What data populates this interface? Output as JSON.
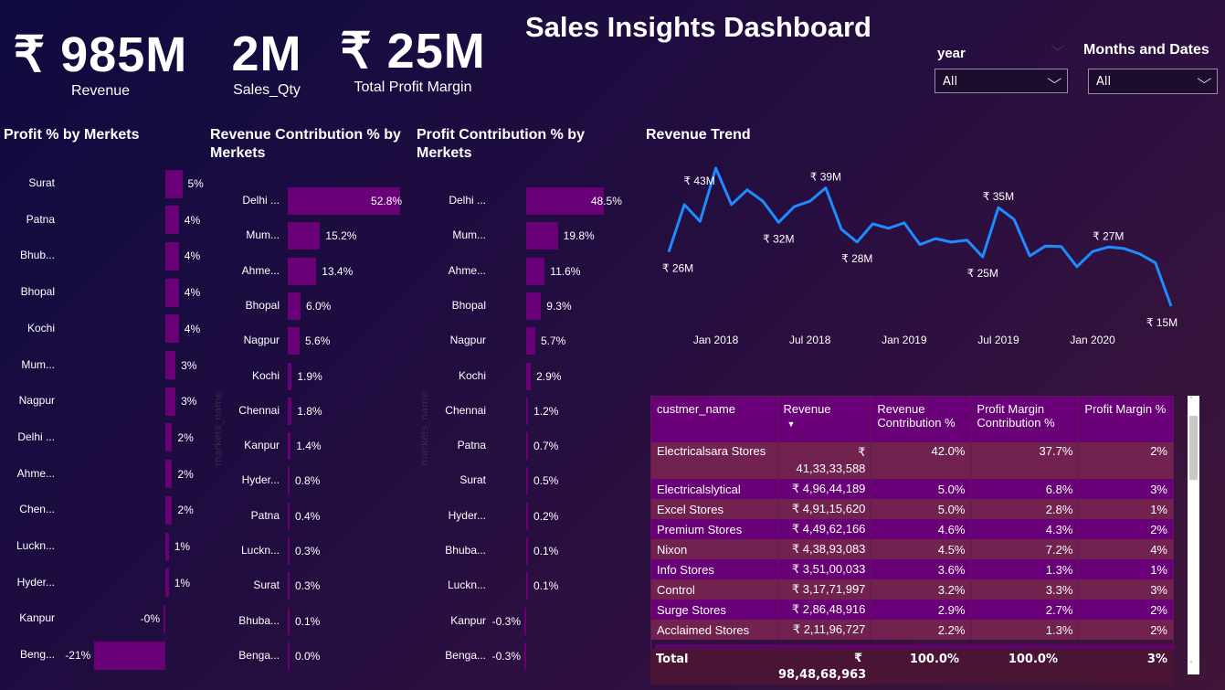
{
  "header": {
    "title": "Sales Insights Dashboard"
  },
  "kpis": [
    {
      "value": "₹ 985M",
      "label": "Revenue"
    },
    {
      "value": "2M",
      "label": "Sales_Qty"
    },
    {
      "value": "₹ 25M",
      "label": "Total Profit Margin"
    }
  ],
  "slicers": [
    {
      "label": "year",
      "value": "All"
    },
    {
      "label": "Months and Dates",
      "value": "All"
    }
  ],
  "colors": {
    "bar": "#6a0077",
    "line": "#1e8cff",
    "accent": "#6a0077"
  },
  "chart_data": [
    {
      "type": "bar",
      "orientation": "horizontal",
      "title": "Profit % by Merkets",
      "axis_title": "",
      "categories": [
        "Surat",
        "Patna",
        "Bhub...",
        "Bhopal",
        "Kochi",
        "Mum...",
        "Nagpur",
        "Delhi ...",
        "Ahme...",
        "Chen...",
        "Luckn...",
        "Hyder...",
        "Kanpur",
        "Beng..."
      ],
      "values": [
        5,
        4,
        4,
        4,
        4,
        3,
        3,
        2,
        2,
        2,
        1,
        1,
        -0.2,
        -21
      ],
      "labels": [
        "5%",
        "4%",
        "4%",
        "4%",
        "4%",
        "3%",
        "3%",
        "2%",
        "2%",
        "2%",
        "1%",
        "1%",
        "-0%",
        "-21%"
      ]
    },
    {
      "type": "bar",
      "orientation": "horizontal",
      "title": "Revenue Contribution % by Merkets",
      "axis_title": "markets_name",
      "categories": [
        "Delhi ...",
        "Mum...",
        "Ahme...",
        "Bhopal",
        "Nagpur",
        "Kochi",
        "Chennai",
        "Kanpur",
        "Hyder...",
        "Patna",
        "Luckn...",
        "Surat",
        "Bhuba...",
        "Benga..."
      ],
      "values": [
        52.8,
        15.2,
        13.4,
        6.0,
        5.6,
        1.9,
        1.8,
        1.4,
        0.8,
        0.4,
        0.3,
        0.3,
        0.1,
        0.0
      ],
      "labels": [
        "52.8%",
        "15.2%",
        "13.4%",
        "6.0%",
        "5.6%",
        "1.9%",
        "1.8%",
        "1.4%",
        "0.8%",
        "0.4%",
        "0.3%",
        "0.3%",
        "0.1%",
        "0.0%"
      ]
    },
    {
      "type": "bar",
      "orientation": "horizontal",
      "title": "Profit Contribution % by Merkets",
      "axis_title": "markets_name",
      "categories": [
        "Delhi ...",
        "Mum...",
        "Ahme...",
        "Bhopal",
        "Nagpur",
        "Kochi",
        "Chennai",
        "Patna",
        "Surat",
        "Hyder...",
        "Bhuba...",
        "Luckn...",
        "Kanpur",
        "Benga..."
      ],
      "values": [
        48.5,
        19.8,
        11.6,
        9.3,
        5.7,
        2.9,
        1.2,
        0.7,
        0.5,
        0.2,
        0.1,
        0.1,
        -0.3,
        -0.3
      ],
      "labels": [
        "48.5%",
        "19.8%",
        "11.6%",
        "9.3%",
        "5.7%",
        "2.9%",
        "1.2%",
        "0.7%",
        "0.5%",
        "0.2%",
        "0.1%",
        "0.1%",
        "-0.3%",
        "-0.3%"
      ]
    },
    {
      "type": "line",
      "title": "Revenue Trend",
      "x_ticks": [
        "Jan 2018",
        "Jul 2018",
        "Jan 2019",
        "Jul 2019",
        "Jan 2020"
      ],
      "x": [
        "2017-10",
        "2017-11",
        "2017-12",
        "2018-01",
        "2018-02",
        "2018-03",
        "2018-04",
        "2018-05",
        "2018-06",
        "2018-07",
        "2018-08",
        "2018-09",
        "2018-10",
        "2018-11",
        "2018-12",
        "2019-01",
        "2019-02",
        "2019-03",
        "2019-04",
        "2019-05",
        "2019-06",
        "2019-07",
        "2019-08",
        "2019-09",
        "2019-10",
        "2019-11",
        "2019-12",
        "2020-01",
        "2020-02",
        "2020-03",
        "2020-04",
        "2020-05",
        "2020-06"
      ],
      "y": [
        26,
        35.6,
        32.2,
        43,
        35.6,
        38.6,
        36.3,
        32,
        35.2,
        36.3,
        39,
        30.6,
        28,
        31.7,
        30.8,
        31.9,
        27.5,
        28.7,
        28,
        28.4,
        25,
        35,
        32.6,
        25.2,
        27.2,
        27.1,
        23,
        26.1,
        27,
        26.7,
        25.6,
        23.8,
        15
      ],
      "unit": "M (₹)",
      "annotations": [
        {
          "index": 0,
          "text": "₹ 26M",
          "pos": "below"
        },
        {
          "index": 3,
          "text": "₹ 43M",
          "pos": "left"
        },
        {
          "index": 7,
          "text": "₹ 32M",
          "pos": "below"
        },
        {
          "index": 10,
          "text": "₹ 39M",
          "pos": "above"
        },
        {
          "index": 12,
          "text": "₹ 28M",
          "pos": "below"
        },
        {
          "index": 20,
          "text": "₹ 25M",
          "pos": "below"
        },
        {
          "index": 21,
          "text": "₹ 35M",
          "pos": "above"
        },
        {
          "index": 28,
          "text": "₹ 27M",
          "pos": "above"
        },
        {
          "index": 32,
          "text": "₹ 15M",
          "pos": "below"
        }
      ]
    }
  ],
  "table": {
    "columns": [
      "custmer_name",
      "Revenue",
      "Revenue Contribution %",
      "Profit Margin Contribution %",
      "Profit Margin %"
    ],
    "rows": [
      [
        "Electricalsara Stores",
        "₹ 41,33,33,588",
        "42.0%",
        "37.7%",
        "2%"
      ],
      [
        "Electricalslytical",
        "₹ 4,96,44,189",
        "5.0%",
        "6.8%",
        "3%"
      ],
      [
        "Excel Stores",
        "₹ 4,91,15,620",
        "5.0%",
        "2.8%",
        "1%"
      ],
      [
        "Premium Stores",
        "₹ 4,49,62,166",
        "4.6%",
        "4.3%",
        "2%"
      ],
      [
        "Nixon",
        "₹ 4,38,93,083",
        "4.5%",
        "7.2%",
        "4%"
      ],
      [
        "Info Stores",
        "₹ 3,51,00,033",
        "3.6%",
        "1.3%",
        "1%"
      ],
      [
        "Control",
        "₹ 3,17,71,997",
        "3.2%",
        "3.3%",
        "3%"
      ],
      [
        "Surge Stores",
        "₹ 2,86,48,916",
        "2.9%",
        "2.7%",
        "2%"
      ],
      [
        "Acclaimed Stores",
        "₹ 2,11,96,727",
        "2.2%",
        "1.3%",
        "2%"
      ]
    ],
    "total": [
      "Total",
      "₹ 98,48,68,963",
      "100.0%",
      "100.0%",
      "3%"
    ]
  }
}
